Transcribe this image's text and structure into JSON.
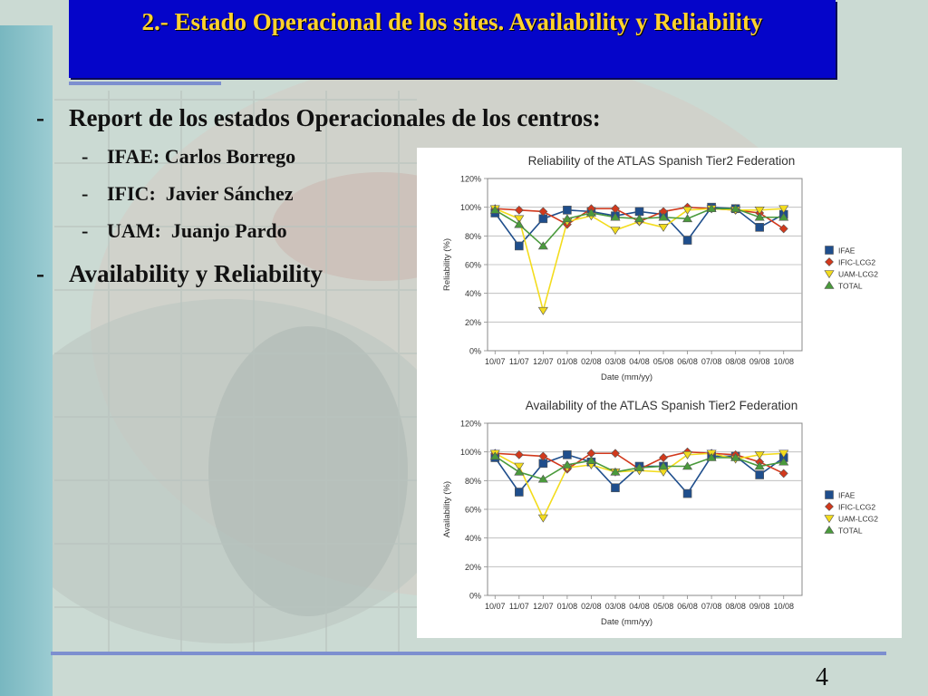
{
  "slide": {
    "title": "2.- Estado Operacional de los sites. Availability y Reliability",
    "bullets": [
      {
        "text": "Report de los estados Operacionales de los centros:",
        "subitems": [
          {
            "text": "IFAE: Carlos Borrego"
          },
          {
            "text": "IFIC:  Javier Sánchez"
          },
          {
            "text": "UAM:  Juanjo Pardo"
          }
        ]
      },
      {
        "text": "Availability y Reliability",
        "subitems": []
      }
    ],
    "page_number": "4",
    "colors": {
      "title_bg": "#0505c9",
      "title_text": "#ffd22e",
      "rule": "#7d8fcf"
    }
  },
  "chart_data": [
    {
      "type": "line",
      "title": "Reliability of the ATLAS Spanish Tier2 Federation",
      "xlabel": "Date (mm/yy)",
      "ylabel": "Reliability (%)",
      "ylim": [
        0,
        120
      ],
      "yticks": [
        "0%",
        "20%",
        "40%",
        "60%",
        "80%",
        "100%",
        "120%"
      ],
      "grid": true,
      "legend": "right",
      "categories": [
        "10/07",
        "11/07",
        "12/07",
        "01/08",
        "02/08",
        "03/08",
        "04/08",
        "05/08",
        "06/08",
        "07/08",
        "08/08",
        "09/08",
        "10/08"
      ],
      "series": [
        {
          "name": "IFAE",
          "color": "#1f4e8c",
          "marker": "square",
          "values": [
            96,
            73,
            92,
            98,
            97,
            94,
            97,
            95,
            77,
            100,
            99,
            86,
            95
          ]
        },
        {
          "name": "IFIC-LCG2",
          "color": "#d2391c",
          "marker": "diamond",
          "values": [
            99,
            98,
            97,
            88,
            99,
            99,
            90,
            97,
            100,
            99,
            98,
            96,
            85
          ]
        },
        {
          "name": "UAM-LCG2",
          "color": "#f3dc1d",
          "marker": "triangle-down",
          "values": [
            99,
            92,
            28,
            90,
            94,
            84,
            90,
            86,
            98,
            99,
            98,
            98,
            99
          ]
        },
        {
          "name": "TOTAL",
          "color": "#4a9a3c",
          "marker": "triangle-up",
          "values": [
            98,
            88,
            73,
            92,
            96,
            93,
            92,
            93,
            92,
            99,
            99,
            93,
            93
          ]
        }
      ]
    },
    {
      "type": "line",
      "title": "Availability of the ATLAS Spanish Tier2 Federation",
      "xlabel": "Date (mm/yy)",
      "ylabel": "Availability (%)",
      "ylim": [
        0,
        120
      ],
      "yticks": [
        "0%",
        "20%",
        "40%",
        "60%",
        "80%",
        "100%",
        "120%"
      ],
      "grid": true,
      "legend": "right",
      "categories": [
        "10/07",
        "11/07",
        "12/07",
        "01/08",
        "02/08",
        "03/08",
        "04/08",
        "05/08",
        "06/08",
        "07/08",
        "08/08",
        "09/08",
        "10/08"
      ],
      "series": [
        {
          "name": "IFAE",
          "color": "#1f4e8c",
          "marker": "square",
          "values": [
            96,
            72,
            92,
            98,
            93,
            75,
            90,
            90,
            71,
            97,
            97,
            84,
            96
          ]
        },
        {
          "name": "IFIC-LCG2",
          "color": "#d2391c",
          "marker": "diamond",
          "values": [
            99,
            98,
            97,
            88,
            99,
            99,
            88,
            96,
            100,
            99,
            98,
            93,
            85
          ]
        },
        {
          "name": "UAM-LCG2",
          "color": "#f3dc1d",
          "marker": "triangle-down",
          "values": [
            99,
            90,
            54,
            89,
            91,
            86,
            87,
            86,
            98,
            99,
            95,
            98,
            99
          ]
        },
        {
          "name": "TOTAL",
          "color": "#4a9a3c",
          "marker": "triangle-up",
          "values": [
            97,
            86,
            81,
            91,
            94,
            86,
            89,
            90,
            90,
            96,
            96,
            90,
            93
          ]
        }
      ]
    }
  ]
}
